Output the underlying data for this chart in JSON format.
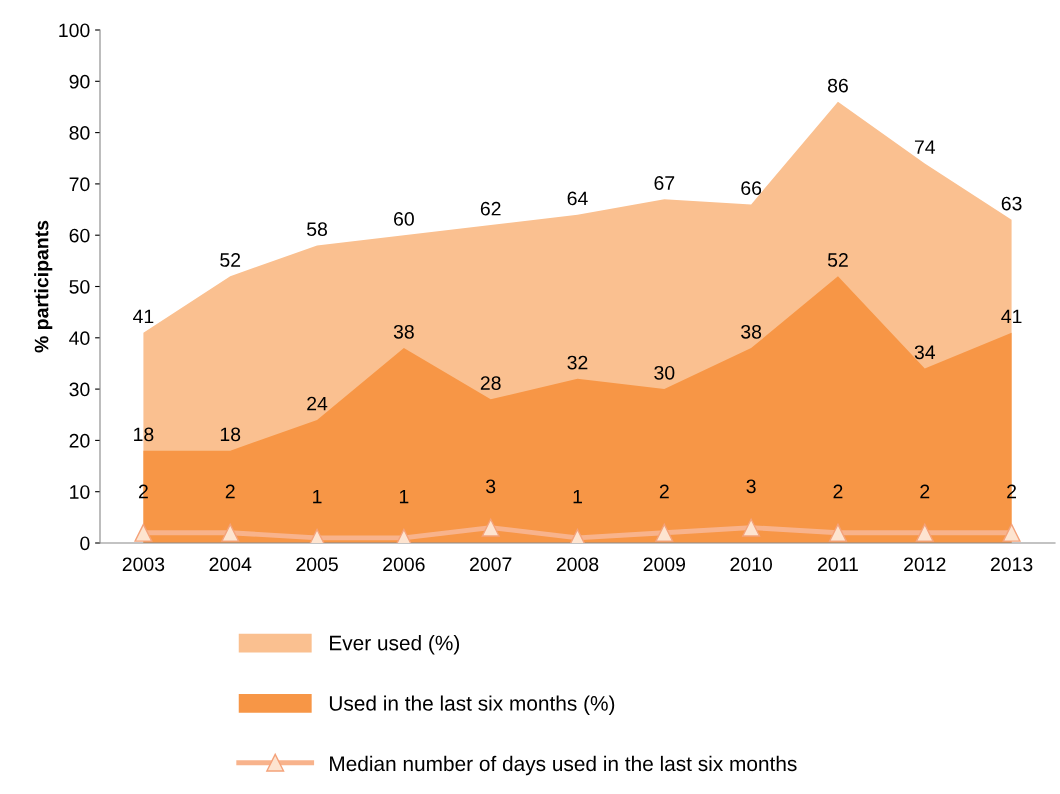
{
  "chart_data": {
    "type": "area",
    "ylabel": "% participants",
    "categories": [
      "2003",
      "2004",
      "2005",
      "2006",
      "2007",
      "2008",
      "2009",
      "2010",
      "2011",
      "2012",
      "2013"
    ],
    "series": [
      {
        "name": "Ever used (%)",
        "color": "#fac090",
        "values": [
          41,
          52,
          58,
          60,
          62,
          64,
          67,
          66,
          86,
          74,
          63
        ]
      },
      {
        "name": "Used in the last six months (%)",
        "color": "#f79646",
        "values": [
          18,
          18,
          24,
          38,
          28,
          32,
          30,
          38,
          52,
          34,
          41
        ]
      },
      {
        "name": "Median number of days used in the last six months",
        "type": "line",
        "color": "#f8b38c",
        "marker": "triangle",
        "values": [
          2,
          2,
          1,
          1,
          3,
          1,
          2,
          3,
          2,
          2,
          2
        ]
      }
    ],
    "ylim": [
      0,
      100
    ],
    "yticks": [
      0,
      10,
      20,
      30,
      40,
      50,
      60,
      70,
      80,
      90,
      100
    ],
    "grid": false,
    "legend": "bottom",
    "data_labels": true
  }
}
